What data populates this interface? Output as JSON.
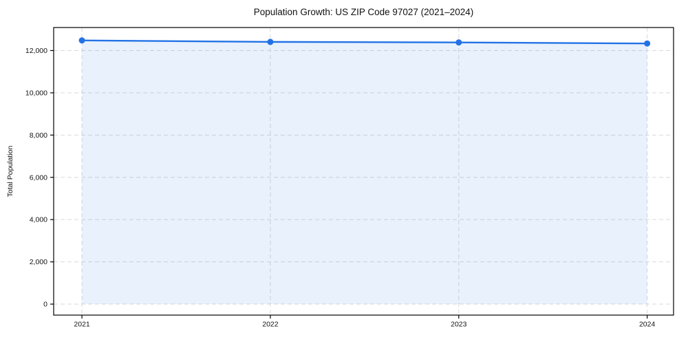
{
  "chart_data": {
    "type": "line",
    "title": "Population Growth: US ZIP Code 97027 (2021–2024)",
    "xlabel": "",
    "ylabel": "Total Population",
    "x": [
      2021,
      2022,
      2023,
      2024
    ],
    "series": [
      {
        "name": "Total Population",
        "values": [
          12480,
          12410,
          12385,
          12335
        ]
      }
    ],
    "x_tick_labels": [
      "2021",
      "2022",
      "2023",
      "2024"
    ],
    "y_ticks": [
      0,
      2000,
      4000,
      6000,
      8000,
      10000,
      12000
    ],
    "y_tick_labels": [
      "0",
      "2,000",
      "4,000",
      "6,000",
      "8,000",
      "10,000",
      "12,000"
    ],
    "xlim": [
      2020.85,
      2024.14
    ],
    "ylim": [
      -520,
      13090
    ],
    "grid": "both-dashed",
    "legend": "none",
    "area_fill": true,
    "colors": {
      "line": "#2272e6",
      "marker": "#2272e6",
      "fill": "rgba(34,114,230,0.10)",
      "grid": "#d9d9d9",
      "axis": "#000000",
      "text": "#111111"
    }
  }
}
